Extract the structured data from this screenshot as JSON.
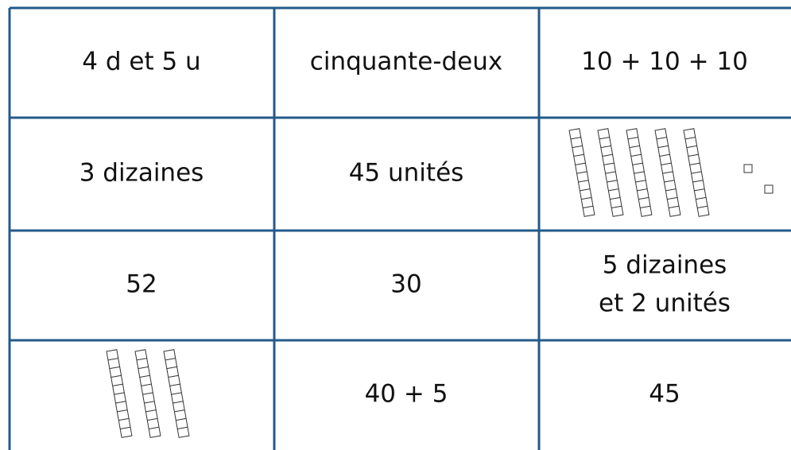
{
  "table": {
    "rows": [
      [
        "4 d et 5 u",
        "cinquante-deux",
        "10 + 10 + 10"
      ],
      [
        "3 dizaines",
        "45 unités",
        {
          "tens": 5,
          "ones": 2
        }
      ],
      [
        "52",
        "30",
        [
          "5 dizaines",
          "et 2 unités"
        ]
      ],
      [
        {
          "tens": 3
        },
        "40 + 5",
        "45"
      ]
    ]
  }
}
